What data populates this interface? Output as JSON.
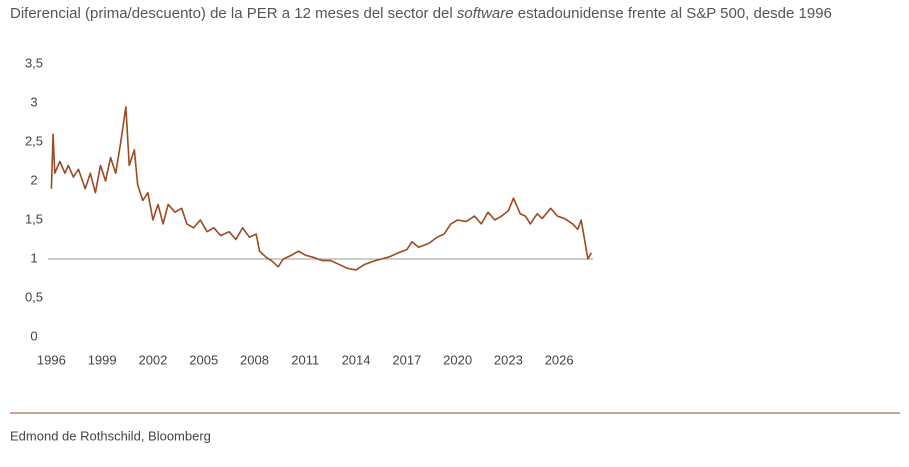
{
  "chart_data": {
    "type": "line",
    "title": [
      "Diferencial (prima/descuento) de la PER a 12 meses del sector del ",
      "software",
      " estadounidense frente al S&P 500, desde 1996"
    ],
    "source": "Edmond de Rothschild, Bloomberg",
    "x": [
      1996.0,
      1996.1,
      1996.2,
      1996.5,
      1996.8,
      1997.0,
      1997.3,
      1997.6,
      1998.0,
      1998.3,
      1998.6,
      1998.9,
      1999.2,
      1999.5,
      1999.8,
      2000.1,
      2000.4,
      2000.6,
      2000.9,
      2001.1,
      2001.4,
      2001.7,
      2002.0,
      2002.3,
      2002.6,
      2002.9,
      2003.3,
      2003.7,
      2004.0,
      2004.4,
      2004.8,
      2005.2,
      2005.6,
      2006.0,
      2006.5,
      2006.9,
      2007.3,
      2007.7,
      2008.1,
      2008.3,
      2008.7,
      2009.0,
      2009.4,
      2009.7,
      2010.2,
      2010.6,
      2011.0,
      2011.5,
      2012.0,
      2012.5,
      2013.0,
      2013.5,
      2014.0,
      2014.5,
      2015.0,
      2015.5,
      2016.0,
      2016.5,
      2017.0,
      2017.3,
      2017.7,
      2018.3,
      2018.8,
      2019.2,
      2019.6,
      2020.0,
      2020.5,
      2021.0,
      2021.4,
      2021.8,
      2022.2,
      2022.6,
      2023.0,
      2023.3,
      2023.7,
      2024.0,
      2024.3,
      2024.7,
      2025.0,
      2025.5,
      2025.9,
      2026.3,
      2026.8,
      2027.1,
      2027.3,
      2027.5,
      2027.7,
      2027.9
    ],
    "series": [
      {
        "color": "#9b4a22",
        "values": [
          1.9,
          2.6,
          2.1,
          2.25,
          2.1,
          2.2,
          2.05,
          2.15,
          1.9,
          2.1,
          1.85,
          2.2,
          2.0,
          2.3,
          2.1,
          2.5,
          2.95,
          2.2,
          2.4,
          1.95,
          1.75,
          1.85,
          1.5,
          1.7,
          1.45,
          1.7,
          1.6,
          1.65,
          1.45,
          1.4,
          1.5,
          1.35,
          1.4,
          1.3,
          1.35,
          1.25,
          1.4,
          1.28,
          1.32,
          1.1,
          1.02,
          0.98,
          0.9,
          1.0,
          1.05,
          1.1,
          1.05,
          1.02,
          0.98,
          0.98,
          0.93,
          0.88,
          0.86,
          0.93,
          0.97,
          1.0,
          1.03,
          1.08,
          1.12,
          1.22,
          1.15,
          1.2,
          1.28,
          1.32,
          1.45,
          1.5,
          1.48,
          1.55,
          1.45,
          1.6,
          1.5,
          1.55,
          1.62,
          1.78,
          1.58,
          1.55,
          1.45,
          1.58,
          1.52,
          1.65,
          1.55,
          1.52,
          1.45,
          1.38,
          1.5,
          1.25,
          1.0,
          1.08
        ]
      }
    ],
    "xlim": [
      1995.8,
      2028.0
    ],
    "xticks": [
      1996,
      1999,
      2002,
      2005,
      2008,
      2011,
      2014,
      2017,
      2020,
      2023,
      2026
    ],
    "ylim": [
      0,
      3.5
    ],
    "yticks": [
      0,
      {
        "value": 0.5,
        "label": "0,5"
      },
      1,
      {
        "value": 1.5,
        "label": "1,5"
      },
      2,
      {
        "value": 2.5,
        "label": "2,5"
      },
      3,
      {
        "value": 3.5,
        "label": "3,5"
      }
    ],
    "reference_line": 1
  }
}
